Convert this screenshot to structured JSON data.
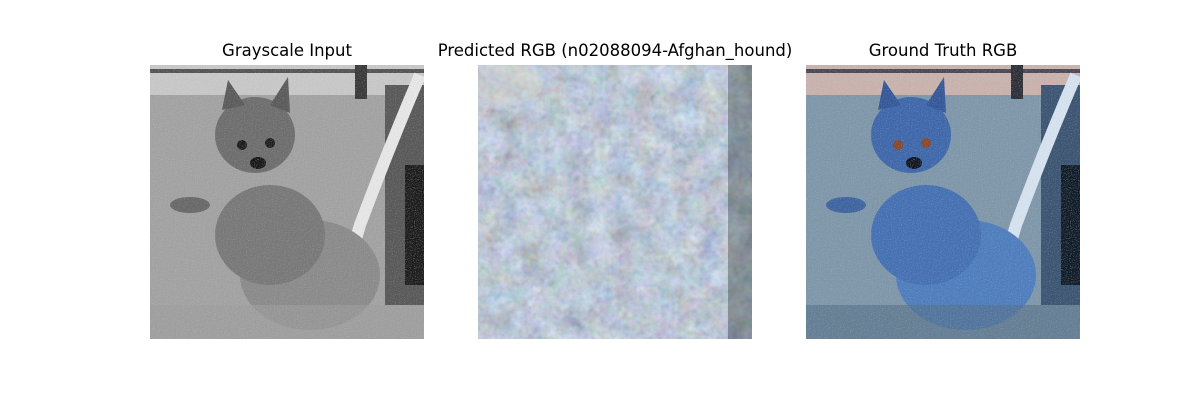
{
  "figure": {
    "panels": [
      {
        "title": "Grayscale Input",
        "image": "grayscale-dog-photo"
      },
      {
        "title": "Predicted RGB (n02088094-Afghan_hound)",
        "image": "predicted-noisy-color-image"
      },
      {
        "title": "Ground Truth RGB",
        "image": "blue-tinted-dog-photo"
      }
    ]
  },
  "colors": {
    "grayscale_bg": "#9a9a9a",
    "grayscale_dog": "#7d7d7d",
    "prediction_base": "#556b78",
    "ground_truth_bg": "#7f96aa",
    "ground_truth_dog": "#4a78b8"
  }
}
